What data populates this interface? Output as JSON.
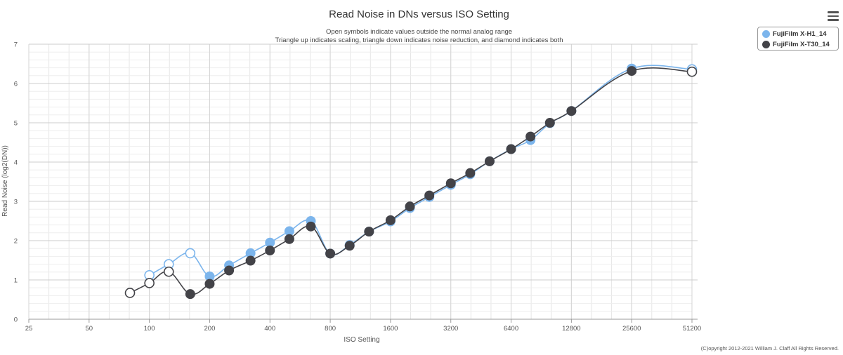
{
  "header": {
    "title": "Read Noise in DNs versus ISO Setting",
    "subtitle_line1": "Open symbols indicate values outside the normal analog range",
    "subtitle_line2": "Triangle up indicates scaling, triangle down indicates noise reduction, and diamond indicates both",
    "menu_icon": "hamburger-menu-icon"
  },
  "footer": {
    "copyright": "(C)opyright 2012-2021 William J. Claff All Rights Reserved."
  },
  "chart_data": {
    "type": "line",
    "title": "Read Noise in DNs versus ISO Setting",
    "xlabel": "ISO Setting",
    "ylabel": "Read Noise (log2(DN))",
    "xscale": "log2",
    "xlim": [
      25,
      51200
    ],
    "ylim": [
      0,
      7
    ],
    "xticks": [
      25,
      50,
      100,
      200,
      400,
      800,
      1600,
      3200,
      6400,
      12800,
      25600,
      51200
    ],
    "yticks": [
      0,
      1,
      2,
      3,
      4,
      5,
      6,
      7
    ],
    "grid": true,
    "legend_position": "top-right",
    "series": [
      {
        "name": "FujiFilm X-H1_14",
        "color": "#7cb5ec",
        "points": [
          {
            "x": 100,
            "y": 1.12,
            "open": true
          },
          {
            "x": 125,
            "y": 1.4,
            "open": true
          },
          {
            "x": 160,
            "y": 1.68,
            "open": true
          },
          {
            "x": 200,
            "y": 1.09
          },
          {
            "x": 250,
            "y": 1.37
          },
          {
            "x": 320,
            "y": 1.68
          },
          {
            "x": 400,
            "y": 1.95
          },
          {
            "x": 500,
            "y": 2.24
          },
          {
            "x": 640,
            "y": 2.5
          },
          {
            "x": 800,
            "y": 1.67
          },
          {
            "x": 1000,
            "y": 1.89
          },
          {
            "x": 1250,
            "y": 2.23
          },
          {
            "x": 1600,
            "y": 2.49
          },
          {
            "x": 2000,
            "y": 2.83
          },
          {
            "x": 2500,
            "y": 3.11
          },
          {
            "x": 3200,
            "y": 3.42
          },
          {
            "x": 4000,
            "y": 3.69
          },
          {
            "x": 5000,
            "y": 4.02
          },
          {
            "x": 6400,
            "y": 4.33
          },
          {
            "x": 8000,
            "y": 4.56
          },
          {
            "x": 10000,
            "y": 4.99
          },
          {
            "x": 12800,
            "y": 5.3
          },
          {
            "x": 25600,
            "y": 6.38
          },
          {
            "x": 51200,
            "y": 6.36,
            "open": true
          }
        ]
      },
      {
        "name": "FujiFilm X-T30_14",
        "color": "#434348",
        "points": [
          {
            "x": 80,
            "y": 0.67,
            "open": true
          },
          {
            "x": 100,
            "y": 0.92,
            "open": true
          },
          {
            "x": 125,
            "y": 1.21,
            "open": true
          },
          {
            "x": 160,
            "y": 0.64
          },
          {
            "x": 200,
            "y": 0.9
          },
          {
            "x": 250,
            "y": 1.24
          },
          {
            "x": 320,
            "y": 1.49
          },
          {
            "x": 400,
            "y": 1.75
          },
          {
            "x": 500,
            "y": 2.04
          },
          {
            "x": 640,
            "y": 2.36
          },
          {
            "x": 800,
            "y": 1.67
          },
          {
            "x": 1000,
            "y": 1.87
          },
          {
            "x": 1250,
            "y": 2.23
          },
          {
            "x": 1600,
            "y": 2.52
          },
          {
            "x": 2000,
            "y": 2.87
          },
          {
            "x": 2500,
            "y": 3.15
          },
          {
            "x": 3200,
            "y": 3.46
          },
          {
            "x": 4000,
            "y": 3.72
          },
          {
            "x": 5000,
            "y": 4.02
          },
          {
            "x": 6400,
            "y": 4.33
          },
          {
            "x": 8000,
            "y": 4.65
          },
          {
            "x": 10000,
            "y": 5.0
          },
          {
            "x": 12800,
            "y": 5.3
          },
          {
            "x": 25600,
            "y": 6.32
          },
          {
            "x": 51200,
            "y": 6.3,
            "open": true
          }
        ]
      }
    ]
  }
}
